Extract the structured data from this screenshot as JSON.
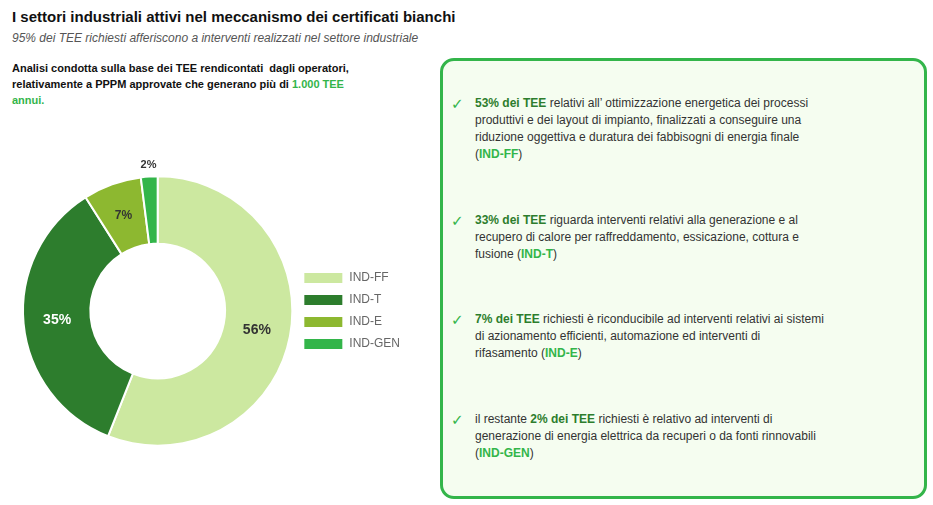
{
  "chart_data": {
    "type": "doughnut",
    "title": "I settori industriali attivi nel meccanismo dei certificati bianchi",
    "subtitle": "95% dei TEE richiesti afferiscono a interventi realizzati nel settore industriale",
    "categories": [
      "IND-FF",
      "IND-T",
      "IND-E",
      "IND-GEN"
    ],
    "values": [
      56,
      35,
      7,
      2
    ],
    "value_labels": [
      "56%",
      "35%",
      "7%",
      "2%"
    ],
    "data_labels": true,
    "colors": [
      "#cce8a0",
      "#2d7d2d",
      "#8db830",
      "#33b54a"
    ],
    "legend": "right",
    "annotations": [
      {
        "lines": [
          [
            {
              "text": "Analisi condotta sulla base dei TEE rendicontati  dagli operatori,"
            }
          ],
          [
            {
              "text": "relativamente a PPPM approvate che generano più di "
            },
            {
              "text": "1.000 TEE",
              "color": "#33b54a"
            }
          ],
          [
            {
              "text": "annui.",
              "color": "#33b54a"
            }
          ]
        ]
      },
      {
        "bullet": "✓",
        "color": "#33b54a",
        "lines": [
          [
            {
              "text": "53% dei TEE",
              "color": "#2d7d2d"
            },
            {
              "text": " relativi all’ ottimizzazione energetica dei processi"
            }
          ],
          [
            {
              "text": "produttivi e dei layout di impianto, finalizzati a conseguire una"
            }
          ],
          [
            {
              "text": "riduzione oggettiva e duratura dei fabbisogni di energia finale"
            }
          ],
          [
            {
              "text": "("
            },
            {
              "text": "IND-FF",
              "color": "#33b54a"
            },
            {
              "text": ")"
            }
          ]
        ]
      },
      {
        "bullet": "✓",
        "color": "#33b54a",
        "lines": [
          [
            {
              "text": "33% dei TEE",
              "color": "#2d7d2d"
            },
            {
              "text": " riguarda interventi relativi alla generazione e al"
            }
          ],
          [
            {
              "text": "recupero di calore per raffreddamento, essicazione, cottura e"
            }
          ],
          [
            {
              "text": "fusione ("
            },
            {
              "text": "IND-T",
              "color": "#33b54a"
            },
            {
              "text": ")"
            }
          ]
        ]
      },
      {
        "bullet": "✓",
        "color": "#33b54a",
        "lines": [
          [
            {
              "text": "7% dei TEE",
              "color": "#2d7d2d"
            },
            {
              "text": " richiesti è riconducibile ad interventi relativi ai sistemi"
            }
          ],
          [
            {
              "text": "di azionamento efficienti, automazione ed interventi di"
            }
          ],
          [
            {
              "text": "rifasamento ("
            },
            {
              "text": "IND-E",
              "color": "#33b54a"
            },
            {
              "text": ")"
            }
          ]
        ]
      },
      {
        "bullet": "✓",
        "color": "#33b54a",
        "lines": [
          [
            {
              "text": "il restante "
            },
            {
              "text": "2% dei TEE",
              "color": "#2d7d2d"
            },
            {
              "text": " richiesti è relativo ad interventi di"
            }
          ],
          [
            {
              "text": "generazione di energia elettrica da recuperi o da fonti rinnovabili"
            }
          ],
          [
            {
              "text": "("
            },
            {
              "text": "IND-GEN",
              "color": "#33b54a"
            },
            {
              "text": ")"
            }
          ]
        ]
      }
    ]
  }
}
